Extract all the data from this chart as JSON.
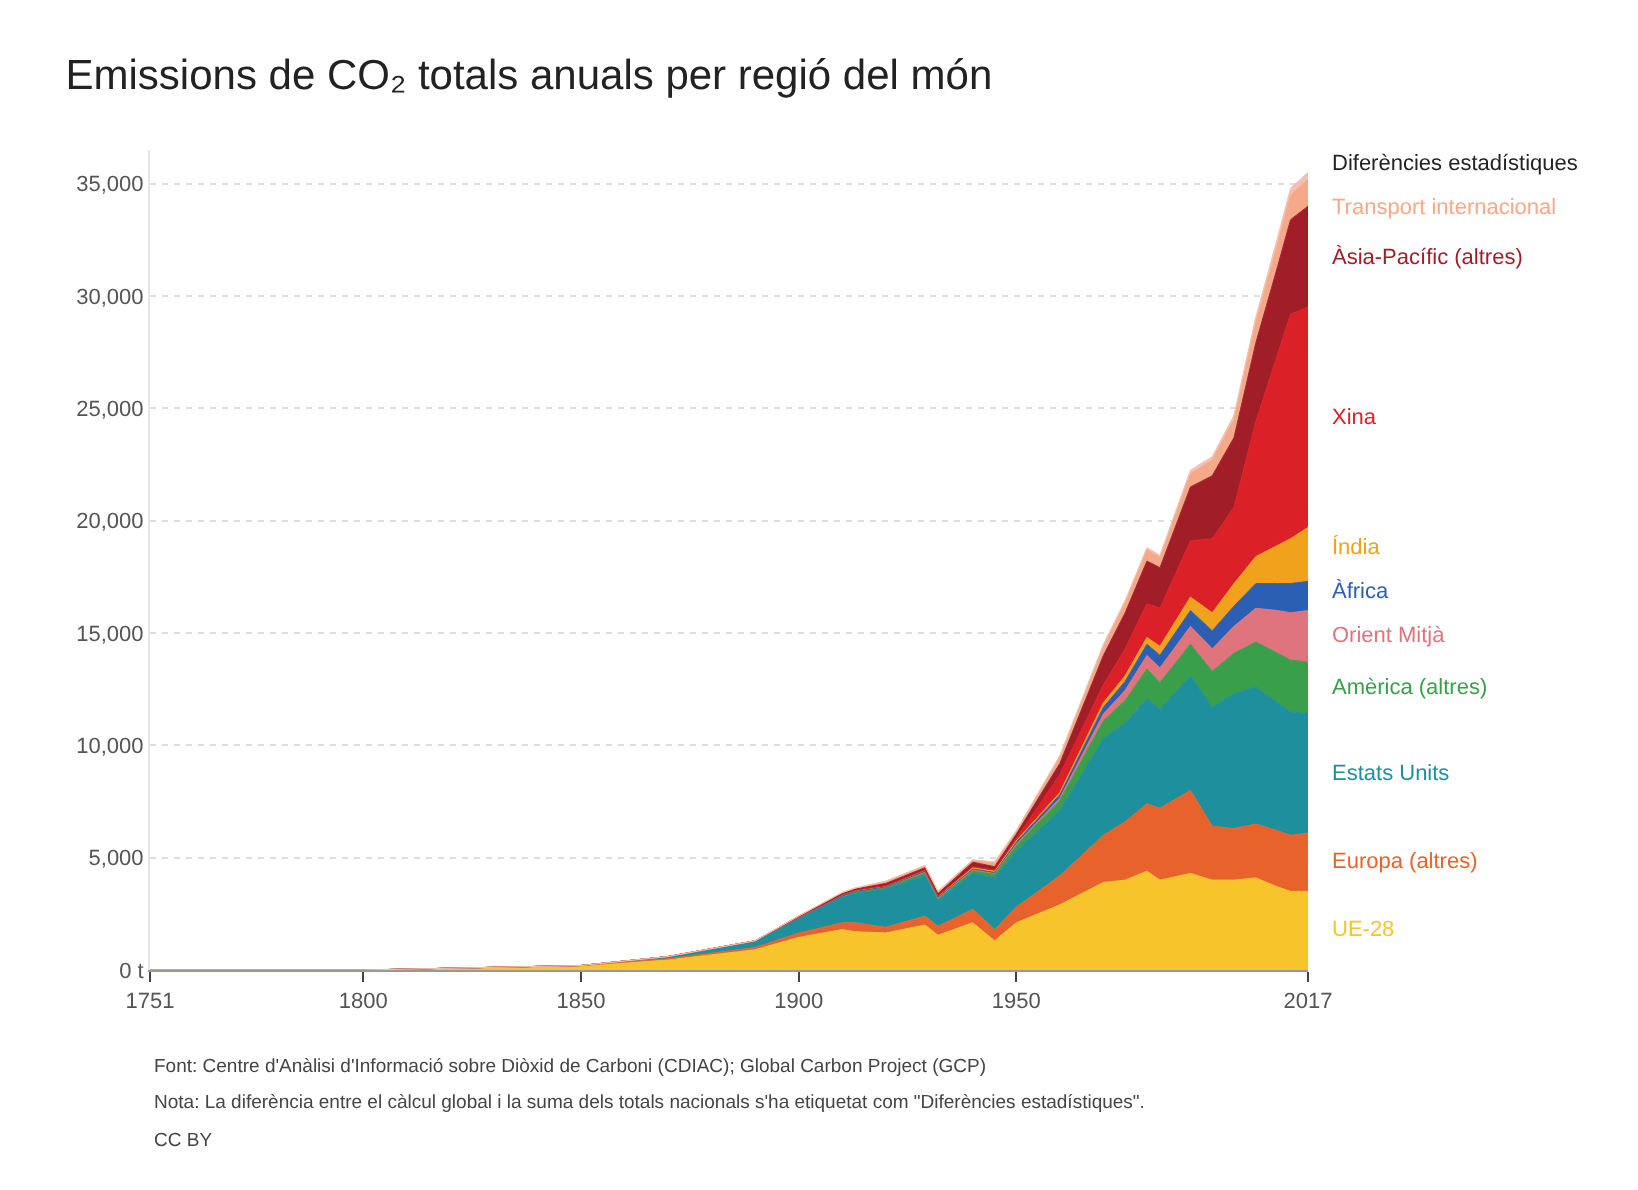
{
  "chart_data": {
    "type": "area",
    "stacked": true,
    "title": "Emissions de CO₂ totals anuals per regió del món",
    "x": [
      1751,
      1800,
      1850,
      1870,
      1890,
      1900,
      1910,
      1913,
      1920,
      1929,
      1932,
      1940,
      1945,
      1950,
      1960,
      1970,
      1975,
      1980,
      1983,
      1990,
      1995,
      2000,
      2005,
      2010,
      2013,
      2017
    ],
    "series": [
      {
        "name": "UE-28",
        "color": "#f7c42c",
        "values": [
          0,
          0,
          200,
          450,
          900,
          1450,
          1800,
          1700,
          1650,
          2000,
          1550,
          2100,
          1300,
          2100,
          2900,
          3900,
          4000,
          4400,
          4000,
          4300,
          4000,
          4000,
          4100,
          3700,
          3500,
          3500
        ]
      },
      {
        "name": "Europa (altres)",
        "color": "#e8632b",
        "values": [
          0,
          0,
          0,
          50,
          100,
          200,
          300,
          400,
          250,
          400,
          400,
          600,
          500,
          700,
          1300,
          2100,
          2600,
          3000,
          3200,
          3700,
          2400,
          2300,
          2400,
          2500,
          2500,
          2600
        ]
      },
      {
        "name": "Estats Units",
        "color": "#1e8f9c",
        "values": [
          0,
          0,
          0,
          100,
          300,
          650,
          1150,
          1300,
          1700,
          1800,
          1150,
          1600,
          2300,
          2500,
          2900,
          4300,
          4400,
          4700,
          4400,
          5100,
          5300,
          6000,
          6100,
          5700,
          5500,
          5300
        ]
      },
      {
        "name": "Amèrica (altres)",
        "color": "#3a9f4a",
        "values": [
          0,
          0,
          0,
          0,
          0,
          50,
          50,
          100,
          100,
          150,
          100,
          150,
          200,
          250,
          450,
          800,
          1000,
          1300,
          1200,
          1400,
          1600,
          1800,
          2000,
          2200,
          2300,
          2300
        ]
      },
      {
        "name": "Orient Mitjà",
        "color": "#e0747c",
        "values": [
          0,
          0,
          0,
          0,
          0,
          0,
          0,
          0,
          0,
          0,
          0,
          0,
          0,
          50,
          100,
          300,
          450,
          600,
          650,
          800,
          1000,
          1200,
          1500,
          1900,
          2100,
          2300
        ]
      },
      {
        "name": "Àfrica",
        "color": "#2b5fb4",
        "values": [
          0,
          0,
          0,
          0,
          0,
          0,
          0,
          0,
          0,
          50,
          50,
          50,
          50,
          100,
          150,
          300,
          400,
          500,
          560,
          700,
          800,
          900,
          1100,
          1200,
          1300,
          1300
        ]
      },
      {
        "name": "Índia",
        "color": "#f0a21c",
        "values": [
          0,
          0,
          0,
          0,
          0,
          0,
          50,
          50,
          50,
          50,
          50,
          50,
          50,
          50,
          100,
          200,
          250,
          300,
          400,
          600,
          800,
          1000,
          1200,
          1700,
          2000,
          2400
        ]
      },
      {
        "name": "Xina",
        "color": "#dc2027",
        "values": [
          0,
          0,
          0,
          0,
          0,
          0,
          0,
          0,
          0,
          0,
          0,
          50,
          50,
          100,
          800,
          800,
          1200,
          1500,
          1700,
          2500,
          3300,
          3400,
          6000,
          8500,
          10000,
          9800
        ]
      },
      {
        "name": "Àsia-Pacífic (altres)",
        "color": "#a11d27",
        "values": [
          0,
          0,
          0,
          0,
          0,
          50,
          50,
          50,
          100,
          100,
          100,
          200,
          150,
          200,
          500,
          1300,
          1600,
          1900,
          1800,
          2400,
          2800,
          3100,
          3500,
          3900,
          4200,
          4500
        ]
      },
      {
        "name": "Transport internacional",
        "color": "#f5a988",
        "values": [
          0,
          0,
          0,
          0,
          0,
          0,
          50,
          50,
          100,
          100,
          100,
          100,
          200,
          150,
          300,
          400,
          450,
          500,
          450,
          600,
          700,
          800,
          900,
          1000,
          1100,
          1200
        ]
      },
      {
        "name": "Diferències estadístiques",
        "color": "#f4c0b4",
        "values": [
          0,
          0,
          0,
          0,
          0,
          0,
          0,
          0,
          0,
          0,
          0,
          0,
          0,
          0,
          50,
          100,
          100,
          100,
          100,
          150,
          150,
          200,
          250,
          300,
          300,
          300
        ]
      }
    ],
    "xlim": [
      1751,
      2017
    ],
    "xticks": [
      1751,
      1800,
      1850,
      1900,
      1950,
      2017
    ],
    "ylim": [
      0,
      36500
    ],
    "yticks": [
      {
        "value": 0,
        "label": "0 t"
      },
      {
        "value": 5000,
        "label": "5,000"
      },
      {
        "value": 10000,
        "label": "10,000"
      },
      {
        "value": 15000,
        "label": "15,000"
      },
      {
        "value": 20000,
        "label": "20,000"
      },
      {
        "value": 25000,
        "label": "25,000"
      },
      {
        "value": 30000,
        "label": "30,000"
      },
      {
        "value": 35000,
        "label": "35,000"
      }
    ],
    "grid": "y",
    "legend": false,
    "annotations": [
      "Font: Centre d'Anàlisi d'Informació sobre Diòxid de Carboni (CDIAC); Global Carbon Project (GCP)",
      "Nota: La diferència entre el càlcul global i la suma dels totals nacionals s'ha etiquetat com \"Diferències estadístiques\".",
      "CC BY"
    ]
  }
}
